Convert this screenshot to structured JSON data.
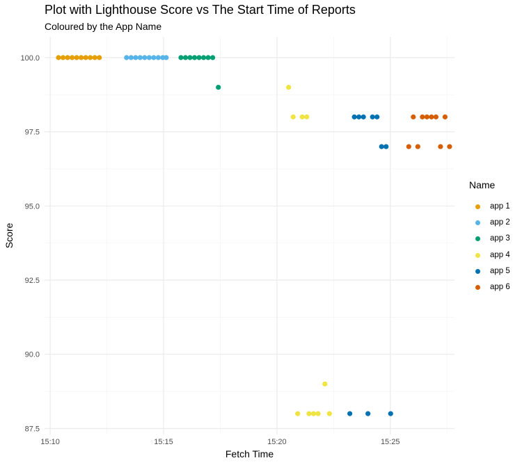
{
  "chart_data": {
    "type": "scatter",
    "title": "Plot with Lighthouse Score vs The Start Time of Reports",
    "subtitle": "Coloured by the App Name",
    "xlabel": "Fetch Time",
    "ylabel": "Score",
    "legend_title": "Name",
    "legend_position": "right",
    "grid": true,
    "x_ticks": [
      "15:10",
      "15:15",
      "15:20",
      "15:25"
    ],
    "y_ticks": [
      "87.5",
      "90.0",
      "92.5",
      "95.0",
      "97.5",
      "100.0"
    ],
    "xlim": [
      "15:09:45",
      "15:27:50"
    ],
    "ylim": [
      87.3,
      100.7
    ],
    "series": [
      {
        "name": "app 1",
        "color": "#E69F00",
        "points": [
          {
            "x": "15:10:22",
            "y": 100
          },
          {
            "x": "15:10:34",
            "y": 100
          },
          {
            "x": "15:10:46",
            "y": 100
          },
          {
            "x": "15:10:58",
            "y": 100
          },
          {
            "x": "15:11:10",
            "y": 100
          },
          {
            "x": "15:11:22",
            "y": 100
          },
          {
            "x": "15:11:34",
            "y": 100
          },
          {
            "x": "15:11:46",
            "y": 100
          },
          {
            "x": "15:11:58",
            "y": 100
          },
          {
            "x": "15:12:10",
            "y": 100
          }
        ]
      },
      {
        "name": "app 2",
        "color": "#56B4E9",
        "points": [
          {
            "x": "15:13:22",
            "y": 100
          },
          {
            "x": "15:13:34",
            "y": 100
          },
          {
            "x": "15:13:46",
            "y": 100
          },
          {
            "x": "15:13:58",
            "y": 100
          },
          {
            "x": "15:14:10",
            "y": 100
          },
          {
            "x": "15:14:22",
            "y": 100
          },
          {
            "x": "15:14:34",
            "y": 100
          },
          {
            "x": "15:14:46",
            "y": 100
          },
          {
            "x": "15:14:58",
            "y": 100
          },
          {
            "x": "15:15:07",
            "y": 100
          }
        ]
      },
      {
        "name": "app 3",
        "color": "#009E73",
        "points": [
          {
            "x": "15:15:46",
            "y": 100
          },
          {
            "x": "15:15:58",
            "y": 100
          },
          {
            "x": "15:16:10",
            "y": 100
          },
          {
            "x": "15:16:22",
            "y": 100
          },
          {
            "x": "15:16:34",
            "y": 100
          },
          {
            "x": "15:16:46",
            "y": 100
          },
          {
            "x": "15:16:58",
            "y": 100
          },
          {
            "x": "15:17:10",
            "y": 100
          },
          {
            "x": "15:17:25",
            "y": 99
          }
        ]
      },
      {
        "name": "app 4",
        "color": "#F0E442",
        "points": [
          {
            "x": "15:20:31",
            "y": 99
          },
          {
            "x": "15:20:43",
            "y": 98
          },
          {
            "x": "15:21:07",
            "y": 98
          },
          {
            "x": "15:21:19",
            "y": 98
          },
          {
            "x": "15:20:55",
            "y": 88
          },
          {
            "x": "15:21:25",
            "y": 88
          },
          {
            "x": "15:21:37",
            "y": 88
          },
          {
            "x": "15:21:49",
            "y": 88
          },
          {
            "x": "15:22:07",
            "y": 89
          },
          {
            "x": "15:22:19",
            "y": 88
          }
        ]
      },
      {
        "name": "app 5",
        "color": "#0072B2",
        "points": [
          {
            "x": "15:23:13",
            "y": 88
          },
          {
            "x": "15:23:25",
            "y": 98
          },
          {
            "x": "15:23:37",
            "y": 98
          },
          {
            "x": "15:23:49",
            "y": 98
          },
          {
            "x": "15:24:01",
            "y": 88
          },
          {
            "x": "15:24:13",
            "y": 98
          },
          {
            "x": "15:24:25",
            "y": 98
          },
          {
            "x": "15:24:37",
            "y": 97
          },
          {
            "x": "15:24:49",
            "y": 97
          },
          {
            "x": "15:25:01",
            "y": 88
          }
        ]
      },
      {
        "name": "app 6",
        "color": "#D55E00",
        "points": [
          {
            "x": "15:25:49",
            "y": 97
          },
          {
            "x": "15:26:01",
            "y": 98
          },
          {
            "x": "15:26:13",
            "y": 97
          },
          {
            "x": "15:26:25",
            "y": 98
          },
          {
            "x": "15:26:37",
            "y": 98
          },
          {
            "x": "15:26:49",
            "y": 98
          },
          {
            "x": "15:27:01",
            "y": 98
          },
          {
            "x": "15:27:13",
            "y": 97
          },
          {
            "x": "15:27:25",
            "y": 98
          },
          {
            "x": "15:27:37",
            "y": 97
          }
        ]
      }
    ]
  }
}
